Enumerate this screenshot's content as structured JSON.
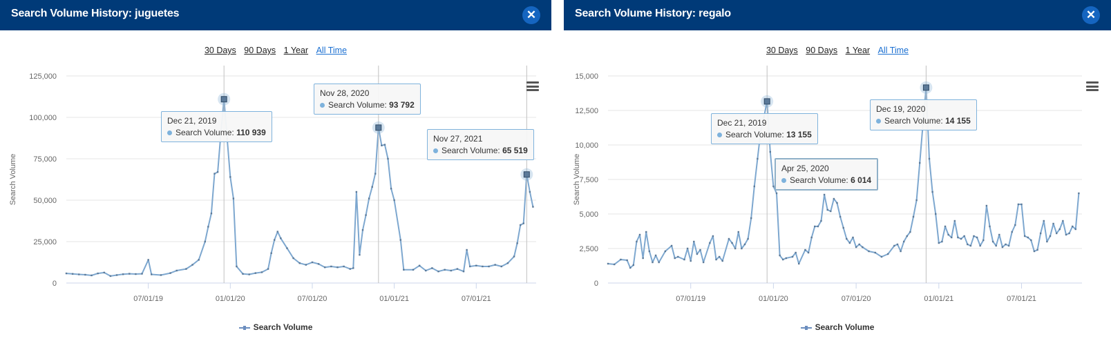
{
  "panels": [
    {
      "title": "Search Volume History: juguetes",
      "close_glyph": "✕",
      "ranges": [
        "30 Days",
        "90 Days",
        "1 Year",
        "All Time"
      ],
      "active_range": "All Time",
      "legend": "Search Volume",
      "tooltips": [
        {
          "date": "Dec 21, 2019",
          "label": "Search Volume:",
          "value": "110 939"
        },
        {
          "date": "Nov 28, 2020",
          "label": "Search Volume:",
          "value": "93 792"
        },
        {
          "date": "Nov 27, 2021",
          "label": "Search Volume:",
          "value": "65 519"
        }
      ]
    },
    {
      "title": "Search Volume History: regalo",
      "close_glyph": "✕",
      "ranges": [
        "30 Days",
        "90 Days",
        "1 Year",
        "All Time"
      ],
      "active_range": "All Time",
      "legend": "Search Volume",
      "tooltips": [
        {
          "date": "Dec 21, 2019",
          "label": "Search Volume:",
          "value": "13 155"
        },
        {
          "date": "Apr 25, 2020",
          "label": "Search Volume:",
          "value": "6 014"
        },
        {
          "date": "Dec 19, 2020",
          "label": "Search Volume:",
          "value": "14 155"
        }
      ]
    }
  ],
  "chart_data": [
    {
      "type": "line",
      "ylabel": "Search Volume",
      "ylim": [
        0,
        125000
      ],
      "yticks": [
        0,
        25000,
        50000,
        75000,
        100000,
        125000
      ],
      "ytick_labels": [
        "0",
        "25,000",
        "50,000",
        "75,000",
        "100,000",
        "125,000"
      ],
      "xtick_labels": [
        "07/01/19",
        "01/01/20",
        "07/01/20",
        "01/01/21",
        "07/01/21"
      ],
      "xrange_weeks": [
        0,
        149
      ],
      "xticks_week": [
        26,
        52,
        78,
        104,
        130
      ],
      "series": [
        {
          "name": "Search Volume",
          "color": "#7da7cf",
          "highlighted": [
            {
              "week": 50,
              "value": 110939
            },
            {
              "week": 99,
              "value": 93792
            },
            {
              "week": 146,
              "value": 65519
            }
          ],
          "points": [
            [
              0,
              5800
            ],
            [
              2,
              5500
            ],
            [
              4,
              5200
            ],
            [
              6,
              5000
            ],
            [
              8,
              4600
            ],
            [
              10,
              5800
            ],
            [
              12,
              6300
            ],
            [
              14,
              4200
            ],
            [
              16,
              4800
            ],
            [
              18,
              5300
            ],
            [
              20,
              5600
            ],
            [
              22,
              5400
            ],
            [
              24,
              5600
            ],
            [
              26,
              14000
            ],
            [
              27,
              5200
            ],
            [
              30,
              4800
            ],
            [
              33,
              6000
            ],
            [
              35,
              7500
            ],
            [
              38,
              8500
            ],
            [
              40,
              11000
            ],
            [
              42,
              14000
            ],
            [
              44,
              25000
            ],
            [
              45,
              34000
            ],
            [
              46,
              42000
            ],
            [
              47,
              66000
            ],
            [
              48,
              67000
            ],
            [
              49,
              90000
            ],
            [
              50,
              110939
            ],
            [
              51,
              87000
            ],
            [
              52,
              64000
            ],
            [
              53,
              51000
            ],
            [
              54,
              10000
            ],
            [
              56,
              5500
            ],
            [
              58,
              5200
            ],
            [
              60,
              6000
            ],
            [
              62,
              6500
            ],
            [
              64,
              8500
            ],
            [
              65,
              18000
            ],
            [
              66,
              26000
            ],
            [
              67,
              31000
            ],
            [
              68,
              27000
            ],
            [
              70,
              21000
            ],
            [
              72,
              15000
            ],
            [
              74,
              12000
            ],
            [
              76,
              11000
            ],
            [
              78,
              12500
            ],
            [
              80,
              11500
            ],
            [
              82,
              9500
            ],
            [
              84,
              10000
            ],
            [
              86,
              9500
            ],
            [
              88,
              10000
            ],
            [
              90,
              8500
            ],
            [
              91,
              9000
            ],
            [
              92,
              55000
            ],
            [
              93,
              17000
            ],
            [
              94,
              32000
            ],
            [
              95,
              41000
            ],
            [
              96,
              51000
            ],
            [
              97,
              58000
            ],
            [
              98,
              66000
            ],
            [
              99,
              93792
            ],
            [
              100,
              83000
            ],
            [
              101,
              83500
            ],
            [
              102,
              75000
            ],
            [
              103,
              57000
            ],
            [
              104,
              50000
            ],
            [
              106,
              26000
            ],
            [
              107,
              8000
            ],
            [
              110,
              8000
            ],
            [
              112,
              10500
            ],
            [
              114,
              7500
            ],
            [
              116,
              9000
            ],
            [
              118,
              7000
            ],
            [
              120,
              8000
            ],
            [
              122,
              7500
            ],
            [
              124,
              8500
            ],
            [
              126,
              7000
            ],
            [
              127,
              20000
            ],
            [
              128,
              10000
            ],
            [
              130,
              10500
            ],
            [
              132,
              10000
            ],
            [
              134,
              10000
            ],
            [
              136,
              11000
            ],
            [
              138,
              10000
            ],
            [
              140,
              12000
            ],
            [
              142,
              16000
            ],
            [
              143,
              24000
            ],
            [
              144,
              35000
            ],
            [
              145,
              36000
            ],
            [
              146,
              65519
            ],
            [
              147,
              55000
            ],
            [
              148,
              46000
            ]
          ]
        }
      ]
    },
    {
      "type": "line",
      "ylabel": "Search Volume",
      "ylim": [
        0,
        15000
      ],
      "yticks": [
        0,
        2500,
        5000,
        7500,
        10000,
        12500,
        15000
      ],
      "ytick_labels": [
        "0",
        "2,500",
        "5,000",
        "7,500",
        "10,000",
        "12,500",
        "15,000"
      ],
      "xtick_labels": [
        "07/01/19",
        "01/01/20",
        "07/01/20",
        "01/01/21",
        "07/01/21"
      ],
      "xrange_weeks": [
        0,
        149
      ],
      "xticks_week": [
        26,
        52,
        78,
        104,
        130
      ],
      "series": [
        {
          "name": "Search Volume",
          "color": "#7da7cf",
          "highlighted": [
            {
              "week": 50,
              "value": 13155
            },
            {
              "week": 100,
              "value": 14155
            }
          ],
          "points": [
            [
              0,
              1400
            ],
            [
              2,
              1350
            ],
            [
              4,
              1700
            ],
            [
              6,
              1650
            ],
            [
              7,
              1100
            ],
            [
              8,
              1300
            ],
            [
              9,
              3000
            ],
            [
              10,
              3500
            ],
            [
              11,
              1800
            ],
            [
              12,
              3700
            ],
            [
              13,
              2300
            ],
            [
              14,
              1500
            ],
            [
              15,
              2000
            ],
            [
              16,
              1500
            ],
            [
              18,
              2300
            ],
            [
              20,
              2700
            ],
            [
              21,
              1800
            ],
            [
              22,
              1900
            ],
            [
              24,
              1700
            ],
            [
              25,
              2500
            ],
            [
              26,
              1600
            ],
            [
              27,
              3000
            ],
            [
              28,
              2100
            ],
            [
              29,
              2400
            ],
            [
              30,
              1500
            ],
            [
              32,
              2900
            ],
            [
              33,
              3400
            ],
            [
              34,
              1700
            ],
            [
              35,
              1900
            ],
            [
              36,
              1600
            ],
            [
              38,
              3200
            ],
            [
              39,
              2900
            ],
            [
              40,
              2500
            ],
            [
              41,
              3700
            ],
            [
              42,
              2500
            ],
            [
              43,
              2800
            ],
            [
              44,
              3200
            ],
            [
              45,
              4700
            ],
            [
              46,
              7000
            ],
            [
              47,
              9000
            ],
            [
              48,
              11000
            ],
            [
              49,
              12000
            ],
            [
              50,
              13155
            ],
            [
              51,
              9500
            ],
            [
              52,
              7000
            ],
            [
              53,
              6500
            ],
            [
              54,
              2000
            ],
            [
              55,
              1700
            ],
            [
              56,
              1800
            ],
            [
              58,
              1900
            ],
            [
              59,
              2200
            ],
            [
              60,
              1400
            ],
            [
              62,
              2400
            ],
            [
              63,
              2200
            ],
            [
              64,
              3300
            ],
            [
              65,
              4100
            ],
            [
              66,
              4100
            ],
            [
              67,
              4500
            ],
            [
              68,
              6400
            ],
            [
              69,
              5300
            ],
            [
              70,
              5200
            ],
            [
              71,
              6100
            ],
            [
              72,
              5800
            ],
            [
              73,
              4800
            ],
            [
              74,
              4000
            ],
            [
              75,
              3200
            ],
            [
              76,
              2900
            ],
            [
              77,
              3300
            ],
            [
              78,
              2600
            ],
            [
              79,
              2800
            ],
            [
              80,
              2600
            ],
            [
              82,
              2300
            ],
            [
              84,
              2200
            ],
            [
              86,
              1900
            ],
            [
              88,
              2100
            ],
            [
              90,
              2700
            ],
            [
              91,
              2800
            ],
            [
              92,
              2300
            ],
            [
              93,
              3000
            ],
            [
              94,
              3400
            ],
            [
              95,
              3700
            ],
            [
              96,
              4800
            ],
            [
              97,
              6000
            ],
            [
              98,
              8700
            ],
            [
              99,
              11500
            ],
            [
              100,
              14155
            ],
            [
              101,
              9000
            ],
            [
              102,
              6600
            ],
            [
              103,
              5000
            ],
            [
              104,
              2900
            ],
            [
              105,
              3000
            ],
            [
              106,
              4100
            ],
            [
              107,
              3500
            ],
            [
              108,
              3300
            ],
            [
              109,
              4500
            ],
            [
              110,
              3300
            ],
            [
              111,
              3200
            ],
            [
              112,
              3400
            ],
            [
              113,
              2800
            ],
            [
              114,
              2700
            ],
            [
              115,
              3400
            ],
            [
              116,
              3300
            ],
            [
              117,
              2700
            ],
            [
              118,
              3100
            ],
            [
              119,
              5600
            ],
            [
              120,
              4100
            ],
            [
              121,
              3000
            ],
            [
              122,
              2700
            ],
            [
              123,
              3500
            ],
            [
              124,
              2600
            ],
            [
              125,
              2800
            ],
            [
              126,
              2700
            ],
            [
              127,
              3700
            ],
            [
              128,
              4200
            ],
            [
              129,
              5700
            ],
            [
              130,
              5700
            ],
            [
              131,
              3400
            ],
            [
              132,
              3300
            ],
            [
              133,
              3100
            ],
            [
              134,
              2300
            ],
            [
              135,
              2400
            ],
            [
              136,
              3600
            ],
            [
              137,
              4500
            ],
            [
              138,
              3000
            ],
            [
              139,
              3400
            ],
            [
              140,
              4300
            ],
            [
              141,
              3600
            ],
            [
              142,
              3900
            ],
            [
              143,
              4500
            ],
            [
              144,
              3500
            ],
            [
              145,
              3600
            ],
            [
              146,
              4100
            ],
            [
              147,
              3900
            ],
            [
              148,
              6500
            ]
          ]
        }
      ]
    }
  ]
}
